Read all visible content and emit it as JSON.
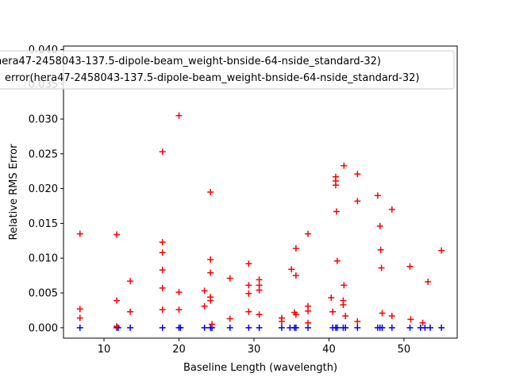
{
  "chart_data": {
    "type": "scatter",
    "xlabel": "Baseline Length (wavelength)",
    "ylabel": "Relative RMS Error",
    "xlim": [
      4.6,
      57.1
    ],
    "ylim": [
      -0.0015,
      0.0405
    ],
    "xticks": [
      10,
      20,
      30,
      40,
      50
    ],
    "xtick_labels": [
      "10",
      "20",
      "30",
      "40",
      "50"
    ],
    "yticks": [
      0.0,
      0.005,
      0.01,
      0.015,
      0.02,
      0.025,
      0.03,
      0.035,
      0.04
    ],
    "ytick_labels": [
      "0.000",
      "0.005",
      "0.010",
      "0.015",
      "0.020",
      "0.025",
      "0.030",
      "0.035",
      "0.040"
    ],
    "grid": false,
    "legend_position": "top-right",
    "legend_entries": [
      "hera47-2458043-137.5-dipole-beam_weight-bnside-64-nside_standard-32)",
      "error(hera47-2458043-137.5-dipole-beam_weight-bnside-64-nside_standard-32)"
    ],
    "series": [
      {
        "color": "#0000ff",
        "marker": "plus",
        "x": [
          6.8,
          11.7,
          11.9,
          13.5,
          17.8,
          20.0,
          20.2,
          23.4,
          24.2,
          24.4,
          26.8,
          29.3,
          30.7,
          33.7,
          34.8,
          35.4,
          35.6,
          37.2,
          40.5,
          40.9,
          41.1,
          41.9,
          42.2,
          43.8,
          46.5,
          46.8,
          47.1,
          48.4,
          50.8,
          52.2,
          52.8,
          53.5,
          55.0
        ],
        "y": [
          0.0,
          0.0,
          0.0,
          0.0,
          0.0,
          0.0,
          0.0,
          0.0,
          0.0,
          0.0,
          0.0,
          0.0,
          0.0,
          0.0,
          0.0,
          0.0,
          0.0,
          0.0,
          0.0,
          0.0,
          0.0,
          0.0,
          0.0,
          0.0,
          0.0,
          0.0,
          0.0,
          0.0,
          0.0,
          0.0,
          0.0,
          0.0,
          0.0
        ]
      },
      {
        "color": "#ff0000",
        "marker": "plus",
        "x": [
          6.8,
          6.8,
          6.8,
          11.7,
          11.7,
          11.7,
          13.5,
          13.5,
          17.8,
          17.8,
          17.8,
          17.8,
          17.8,
          17.8,
          20.0,
          20.0,
          20.0,
          23.4,
          23.4,
          24.2,
          24.2,
          24.2,
          24.2,
          24.2,
          24.4,
          26.8,
          26.8,
          29.3,
          29.3,
          29.3,
          29.3,
          30.7,
          30.7,
          30.7,
          30.7,
          33.7,
          33.7,
          35.0,
          35.4,
          35.6,
          35.6,
          35.6,
          37.2,
          37.2,
          37.2,
          37.2,
          40.3,
          40.5,
          40.9,
          40.9,
          40.9,
          41.0,
          41.1,
          41.9,
          41.9,
          42.0,
          42.0,
          42.2,
          43.8,
          43.8,
          43.8,
          46.5,
          46.8,
          46.9,
          47.0,
          47.1,
          48.4,
          48.4,
          50.8,
          50.9,
          52.5,
          53.2,
          55.0
        ],
        "y": [
          0.0135,
          0.0027,
          0.0014,
          0.0134,
          0.0039,
          0.0002,
          0.0067,
          0.0023,
          0.0253,
          0.0123,
          0.0108,
          0.0083,
          0.0057,
          0.0026,
          0.0305,
          0.0051,
          0.0026,
          0.0053,
          0.0031,
          0.0195,
          0.0098,
          0.0079,
          0.0044,
          0.0039,
          0.0005,
          0.0071,
          0.0013,
          0.0092,
          0.0061,
          0.0049,
          0.0023,
          0.0069,
          0.0061,
          0.0054,
          0.0019,
          0.0014,
          0.0009,
          0.0084,
          0.0022,
          0.0114,
          0.0075,
          0.0019,
          0.0135,
          0.0031,
          0.0024,
          0.0007,
          0.0043,
          0.0023,
          0.0217,
          0.0211,
          0.0205,
          0.0167,
          0.0096,
          0.0039,
          0.0033,
          0.0233,
          0.0061,
          0.0017,
          0.0221,
          0.0182,
          0.0009,
          0.019,
          0.0146,
          0.0112,
          0.0086,
          0.0021,
          0.017,
          0.0017,
          0.0088,
          0.0012,
          0.0007,
          0.0066,
          0.0111
        ]
      }
    ]
  }
}
